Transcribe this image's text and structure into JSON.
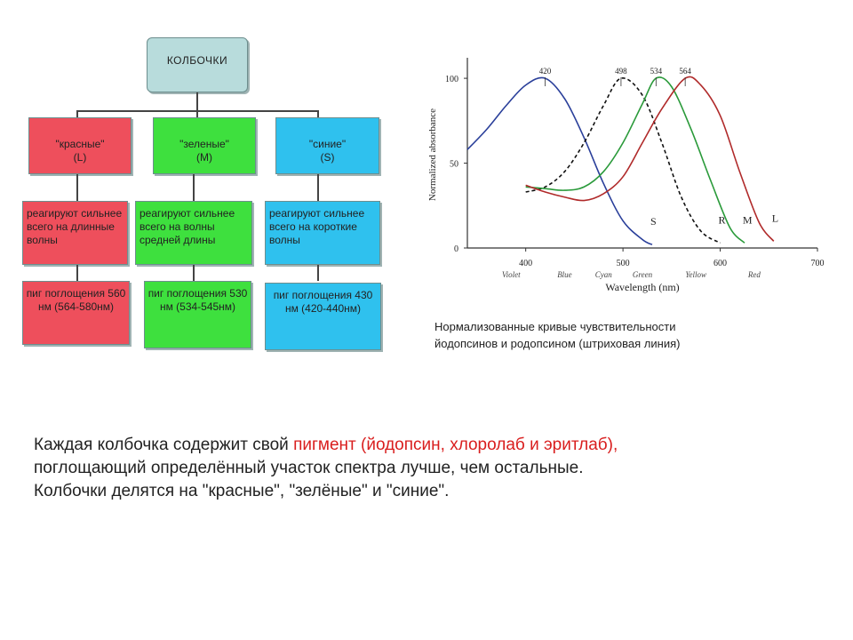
{
  "tree": {
    "root": "КОЛБОЧКИ",
    "types": [
      {
        "name": "\"красные\"",
        "code": "(L)",
        "description": "реагируют сильнее всего на длинные волны",
        "peak": "пиг поглощения 560 нм (564-580нм)",
        "color": "#ee4f5c"
      },
      {
        "name": "\"зеленые\"",
        "code": "(M)",
        "description": "реагируют сильнее всего на волны средней длины",
        "peak": "пиг поглощения 530 нм (534-545нм)",
        "color": "#3ee03e"
      },
      {
        "name": "\"синие\"",
        "code": "(S)",
        "description": "реагируют сильнее всего на короткие волны",
        "peak": "пиг поглощения 430 нм (420-440нм)",
        "color": "#2fc1ee"
      }
    ]
  },
  "chart_data": {
    "type": "line",
    "xlabel": "Wavelength (nm)",
    "ylabel": "Normalized absorbance",
    "xlim": [
      340,
      700
    ],
    "ylim": [
      0,
      110
    ],
    "xticks": [
      400,
      500,
      600,
      700
    ],
    "yticks": [
      0,
      50,
      100
    ],
    "color_bands": [
      "Violet",
      "Blue",
      "Cyan",
      "Green",
      "Yellow",
      "Red"
    ],
    "peak_labels": [
      "420",
      "498",
      "534",
      "564"
    ],
    "series": [
      {
        "name": "S",
        "color": "#2a3f9a",
        "dashed": false,
        "x": [
          340,
          360,
          380,
          400,
          420,
          440,
          460,
          480,
          500,
          520,
          530
        ],
        "y": [
          58,
          70,
          84,
          96,
          100,
          88,
          65,
          38,
          16,
          5,
          2
        ]
      },
      {
        "name": "R",
        "color": "#111111",
        "dashed": true,
        "x": [
          400,
          420,
          440,
          460,
          480,
          498,
          520,
          540,
          560,
          580,
          600
        ],
        "y": [
          33,
          36,
          45,
          62,
          84,
          100,
          90,
          62,
          30,
          10,
          3
        ]
      },
      {
        "name": "M",
        "color": "#2a9a3a",
        "dashed": false,
        "x": [
          400,
          420,
          440,
          460,
          480,
          500,
          520,
          534,
          550,
          570,
          590,
          610,
          625
        ],
        "y": [
          36,
          35,
          34,
          36,
          45,
          62,
          85,
          100,
          95,
          70,
          40,
          12,
          3
        ]
      },
      {
        "name": "L",
        "color": "#b02a2a",
        "dashed": false,
        "x": [
          400,
          420,
          440,
          460,
          480,
          500,
          520,
          540,
          564,
          580,
          600,
          620,
          640,
          655
        ],
        "y": [
          37,
          33,
          30,
          28,
          32,
          42,
          62,
          82,
          100,
          96,
          78,
          45,
          15,
          4
        ]
      }
    ]
  },
  "caption": {
    "line1": "Нормализованные кривые чувствительности",
    "line2": "йодопсинов и родопсином (штриховая линия)"
  },
  "text": {
    "p1_a": "Каждая колбочка содержит свой ",
    "p1_accent": "пигмент (йодопсин, хлоролаб и эритлаб),",
    "p2": "поглощающий определённый участок спектра лучше, чем остальные.",
    "p3": "Колбочки делятся на \"красные\", \"зелёные\" и \"синие\"."
  }
}
